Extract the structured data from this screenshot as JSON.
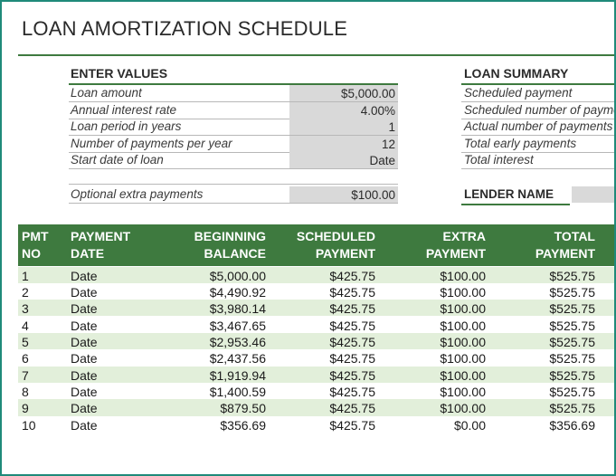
{
  "title": "LOAN AMORTIZATION SCHEDULE",
  "enter_values": {
    "heading": "ENTER VALUES",
    "rows": [
      {
        "label": "Loan amount",
        "value": "$5,000.00"
      },
      {
        "label": "Annual interest rate",
        "value": "4.00%"
      },
      {
        "label": "Loan period in years",
        "value": "1"
      },
      {
        "label": "Number of payments per year",
        "value": "12"
      },
      {
        "label": "Start date of loan",
        "value": "Date"
      }
    ],
    "extra": {
      "label": "Optional extra payments",
      "value": "$100.00"
    }
  },
  "loan_summary": {
    "heading": "LOAN SUMMARY",
    "rows": [
      {
        "label": "Scheduled payment"
      },
      {
        "label": "Scheduled number of payments"
      },
      {
        "label": "Actual number of payments"
      },
      {
        "label": "Total early payments"
      },
      {
        "label": "Total interest"
      }
    ],
    "lender_label": "LENDER NAME"
  },
  "table": {
    "headers": [
      {
        "line1": "PMT",
        "line2": "NO"
      },
      {
        "line1": "PAYMENT",
        "line2": "DATE"
      },
      {
        "line1": "BEGINNING",
        "line2": "BALANCE"
      },
      {
        "line1": "SCHEDULED",
        "line2": "PAYMENT"
      },
      {
        "line1": "EXTRA",
        "line2": "PAYMENT"
      },
      {
        "line1": "TOTAL",
        "line2": "PAYMENT"
      }
    ],
    "rows": [
      [
        "1",
        "Date",
        "$5,000.00",
        "$425.75",
        "$100.00",
        "$525.75"
      ],
      [
        "2",
        "Date",
        "$4,490.92",
        "$425.75",
        "$100.00",
        "$525.75"
      ],
      [
        "3",
        "Date",
        "$3,980.14",
        "$425.75",
        "$100.00",
        "$525.75"
      ],
      [
        "4",
        "Date",
        "$3,467.65",
        "$425.75",
        "$100.00",
        "$525.75"
      ],
      [
        "5",
        "Date",
        "$2,953.46",
        "$425.75",
        "$100.00",
        "$525.75"
      ],
      [
        "6",
        "Date",
        "$2,437.56",
        "$425.75",
        "$100.00",
        "$525.75"
      ],
      [
        "7",
        "Date",
        "$1,919.94",
        "$425.75",
        "$100.00",
        "$525.75"
      ],
      [
        "8",
        "Date",
        "$1,400.59",
        "$425.75",
        "$100.00",
        "$525.75"
      ],
      [
        "9",
        "Date",
        "$879.50",
        "$425.75",
        "$100.00",
        "$525.75"
      ],
      [
        "10",
        "Date",
        "$356.69",
        "$425.75",
        "$0.00",
        "$356.69"
      ]
    ]
  }
}
